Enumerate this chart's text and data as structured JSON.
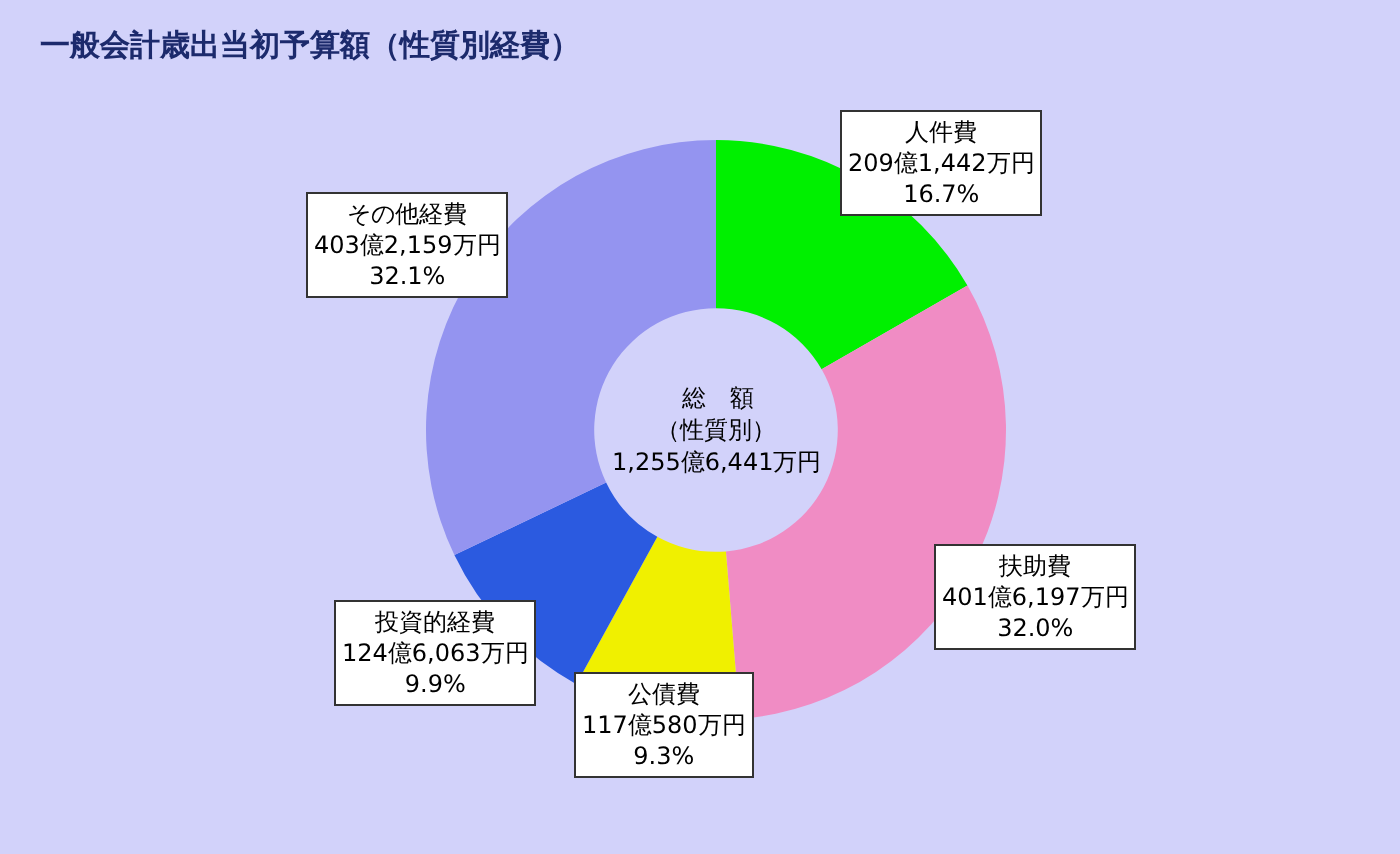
{
  "chart_data": {
    "type": "donut",
    "title": "一般会計歳出当初予算額（性質別経費）",
    "categories": [
      "人件費",
      "扶助費",
      "公債費",
      "投資的経費",
      "その他経費"
    ],
    "values": [
      16.7,
      32.0,
      9.3,
      9.9,
      32.1
    ],
    "colors": [
      "#00f000",
      "#f08cc4",
      "#f0f000",
      "#2b5ae0",
      "#9494f0"
    ],
    "value_labels": [
      "209億1,442万円\n16.7%",
      "401億6,197万円\n32.0%",
      "117億580万円\n9.3%",
      "124億6,063万円\n9.9%",
      "403億2,159万円\n32.1%"
    ],
    "annotations": [
      "総　額",
      "（性質別）",
      "1,255億6,441万円"
    ]
  }
}
